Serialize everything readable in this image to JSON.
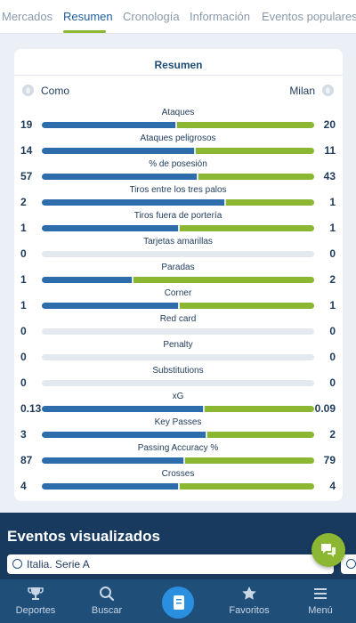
{
  "tabs": [
    {
      "label": "Mercados"
    },
    {
      "label": "Resumen"
    },
    {
      "label": "Cronología"
    },
    {
      "label": "Información"
    },
    {
      "label": "Eventos populares"
    }
  ],
  "summary": {
    "title": "Resumen",
    "home_team": "Como",
    "away_team": "Milan",
    "stats": [
      {
        "label": "Ataques",
        "home": "19",
        "away": "20",
        "home_fraction": 0.49
      },
      {
        "label": "Ataques peligrosos",
        "home": "14",
        "away": "11",
        "home_fraction": 0.56
      },
      {
        "label": "% de posesión",
        "home": "57",
        "away": "43",
        "home_fraction": 0.57
      },
      {
        "label": "Tiros entre los tres palos",
        "home": "2",
        "away": "1",
        "home_fraction": 0.67
      },
      {
        "label": "Tiros fuera de portería",
        "home": "1",
        "away": "1",
        "home_fraction": 0.5
      },
      {
        "label": "Tarjetas amarillas",
        "home": "0",
        "away": "0",
        "home_fraction": null
      },
      {
        "label": "Paradas",
        "home": "1",
        "away": "2",
        "home_fraction": 0.33
      },
      {
        "label": "Corner",
        "home": "1",
        "away": "1",
        "home_fraction": 0.5
      },
      {
        "label": "Red card",
        "home": "0",
        "away": "0",
        "home_fraction": null
      },
      {
        "label": "Penalty",
        "home": "0",
        "away": "0",
        "home_fraction": null
      },
      {
        "label": "Substitutions",
        "home": "0",
        "away": "0",
        "home_fraction": null
      },
      {
        "label": "xG",
        "home": "0.13",
        "away": "0.09",
        "home_fraction": 0.59
      },
      {
        "label": "Key Passes",
        "home": "3",
        "away": "2",
        "home_fraction": 0.6
      },
      {
        "label": "Passing Accuracy %",
        "home": "87",
        "away": "79",
        "home_fraction": 0.52
      },
      {
        "label": "Crosses",
        "home": "4",
        "away": "4",
        "home_fraction": 0.5
      }
    ]
  },
  "eventos": {
    "title": "Eventos visualizados",
    "card_label": "Italia. Serie A"
  },
  "bottom_nav": [
    {
      "label": "Deportes",
      "icon": "trophy-icon"
    },
    {
      "label": "Buscar",
      "icon": "search-icon"
    },
    {
      "label": "",
      "icon": "betslip-icon"
    },
    {
      "label": "Favoritos",
      "icon": "star-icon"
    },
    {
      "label": "Menú",
      "icon": "menu-icon"
    }
  ],
  "colors": {
    "home": "#2e6dac",
    "away": "#8bb733",
    "track": "#e3e9ee",
    "nav": "#1f4e79",
    "accent": "#8bb733"
  }
}
